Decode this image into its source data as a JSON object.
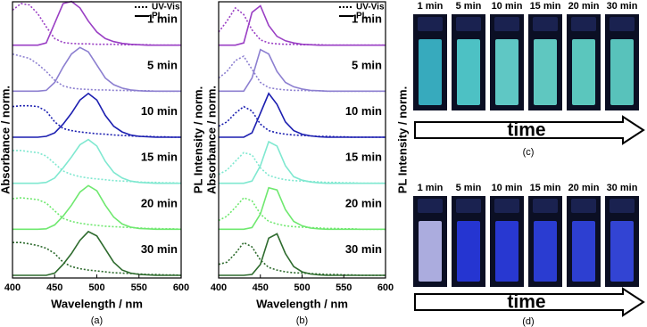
{
  "chart_data": [
    {
      "type": "line",
      "caption": "(a)",
      "xlabel": "Wavelength / nm",
      "ylabel": "Absorbance / norm.",
      "y2label": "PL Intensity / norm.",
      "xlim": [
        400,
        600
      ],
      "xticks": [
        400,
        450,
        500,
        550,
        600
      ],
      "ylim": [
        0,
        1
      ],
      "legend": [
        {
          "name": "UV-Vis",
          "style": "dotted"
        },
        {
          "name": "PL",
          "style": "solid"
        }
      ],
      "x": [
        400,
        410,
        420,
        430,
        440,
        450,
        460,
        470,
        480,
        490,
        500,
        510,
        520,
        530,
        540,
        550,
        560,
        570,
        580,
        590,
        600
      ],
      "samples": [
        {
          "label": "1 min",
          "color": "#9a3fc4",
          "uv": [
            0.8,
            0.95,
            0.92,
            0.72,
            0.42,
            0.15,
            0.06,
            0.04,
            0.03,
            0.03,
            0.02,
            0.02,
            0.02,
            0.01,
            0.01,
            0.01,
            0.01,
            0,
            0,
            0,
            0
          ],
          "pl": [
            0,
            0,
            0,
            0,
            0.05,
            0.5,
            0.95,
            1,
            0.85,
            0.55,
            0.3,
            0.15,
            0.08,
            0.04,
            0.02,
            0.01,
            0,
            0,
            0,
            0,
            0
          ]
        },
        {
          "label": "5 min",
          "color": "#8c7fd0",
          "uv": [
            0.85,
            0.8,
            0.75,
            0.62,
            0.45,
            0.25,
            0.12,
            0.07,
            0.05,
            0.04,
            0.03,
            0.03,
            0.02,
            0.02,
            0.01,
            0.01,
            0.01,
            0,
            0,
            0,
            0
          ],
          "pl": [
            0,
            0,
            0,
            0,
            0.02,
            0.2,
            0.55,
            0.85,
            1,
            0.9,
            0.6,
            0.3,
            0.15,
            0.07,
            0.03,
            0.01,
            0,
            0,
            0,
            0,
            0
          ]
        },
        {
          "label": "10 min",
          "color": "#1c1fb0",
          "uv": [
            0.7,
            0.72,
            0.72,
            0.7,
            0.6,
            0.35,
            0.2,
            0.15,
            0.12,
            0.1,
            0.08,
            0.07,
            0.05,
            0.04,
            0.03,
            0.02,
            0.02,
            0.01,
            0.01,
            0,
            0
          ],
          "pl": [
            0,
            0,
            0,
            0,
            0.02,
            0.1,
            0.3,
            0.55,
            0.85,
            1,
            0.85,
            0.5,
            0.25,
            0.12,
            0.05,
            0.02,
            0.01,
            0,
            0,
            0,
            0
          ]
        },
        {
          "label": "15 min",
          "color": "#7fe8d0",
          "uv": [
            0.75,
            0.75,
            0.72,
            0.7,
            0.62,
            0.45,
            0.28,
            0.2,
            0.15,
            0.12,
            0.1,
            0.08,
            0.06,
            0.05,
            0.04,
            0.03,
            0.02,
            0.02,
            0.01,
            0.01,
            0
          ],
          "pl": [
            0,
            0,
            0,
            0,
            0.02,
            0.12,
            0.35,
            0.6,
            0.88,
            1,
            0.85,
            0.5,
            0.25,
            0.12,
            0.05,
            0.02,
            0.01,
            0,
            0,
            0,
            0
          ]
        },
        {
          "label": "20 min",
          "color": "#6fe86f",
          "uv": [
            0.7,
            0.72,
            0.7,
            0.68,
            0.6,
            0.42,
            0.25,
            0.18,
            0.14,
            0.11,
            0.09,
            0.07,
            0.06,
            0.05,
            0.04,
            0.03,
            0.02,
            0.02,
            0.01,
            0.01,
            0
          ],
          "pl": [
            0,
            0,
            0,
            0,
            0.01,
            0.1,
            0.3,
            0.55,
            0.85,
            1,
            0.88,
            0.55,
            0.28,
            0.12,
            0.05,
            0.02,
            0.01,
            0,
            0,
            0,
            0
          ]
        },
        {
          "label": "30 min",
          "color": "#2e6b2e",
          "uv": [
            0.75,
            0.75,
            0.72,
            0.68,
            0.62,
            0.5,
            0.3,
            0.2,
            0.15,
            0.12,
            0.1,
            0.08,
            0.06,
            0.05,
            0.04,
            0.03,
            0.02,
            0.02,
            0.01,
            0.01,
            0
          ],
          "pl": [
            0,
            0,
            0,
            0,
            0,
            0.05,
            0.25,
            0.5,
            0.8,
            1,
            0.9,
            0.6,
            0.3,
            0.12,
            0.05,
            0.02,
            0.01,
            0,
            0,
            0,
            0
          ]
        }
      ]
    },
    {
      "type": "line",
      "caption": "(b)",
      "xlabel": "Wavelength / nm",
      "ylabel": "Absorbance / norm.",
      "y2label": "PL Intensity / norm.",
      "xlim": [
        400,
        600
      ],
      "xticks": [
        400,
        450,
        500,
        550,
        600
      ],
      "ylim": [
        0,
        1
      ],
      "legend": [
        {
          "name": "UV-Vis",
          "style": "dotted"
        },
        {
          "name": "PL",
          "style": "solid"
        }
      ],
      "x": [
        400,
        410,
        420,
        430,
        440,
        450,
        460,
        470,
        480,
        490,
        500,
        510,
        520,
        530,
        540,
        550,
        560,
        570,
        580,
        590,
        600
      ],
      "samples": [
        {
          "label": "1 min",
          "color": "#9a3fc4",
          "uv": [
            0.3,
            0.55,
            0.85,
            0.7,
            0.35,
            0.12,
            0.05,
            0.03,
            0.02,
            0.02,
            0.01,
            0.01,
            0.01,
            0,
            0,
            0,
            0,
            0,
            0,
            0,
            0
          ],
          "pl": [
            0,
            0,
            0,
            0.05,
            0.75,
            0.9,
            0.45,
            0.2,
            0.1,
            0.05,
            0.02,
            0.01,
            0,
            0,
            0,
            0,
            0,
            0,
            0,
            0,
            0
          ]
        },
        {
          "label": "5 min",
          "color": "#8c7fd0",
          "uv": [
            0.3,
            0.45,
            0.7,
            0.8,
            0.5,
            0.2,
            0.08,
            0.05,
            0.03,
            0.02,
            0.02,
            0.01,
            0.01,
            0,
            0,
            0,
            0,
            0,
            0,
            0,
            0
          ],
          "pl": [
            0,
            0,
            0,
            0,
            0.3,
            0.95,
            0.85,
            0.45,
            0.2,
            0.1,
            0.05,
            0.02,
            0.01,
            0,
            0,
            0,
            0,
            0,
            0,
            0,
            0
          ]
        },
        {
          "label": "10 min",
          "color": "#1c1fb0",
          "uv": [
            0.25,
            0.35,
            0.55,
            0.7,
            0.6,
            0.3,
            0.15,
            0.1,
            0.07,
            0.05,
            0.04,
            0.03,
            0.02,
            0.02,
            0.01,
            0.01,
            0,
            0,
            0,
            0,
            0
          ],
          "pl": [
            0,
            0,
            0,
            0,
            0.1,
            0.55,
            1,
            0.75,
            0.35,
            0.15,
            0.07,
            0.03,
            0.01,
            0,
            0,
            0,
            0,
            0,
            0,
            0,
            0
          ]
        },
        {
          "label": "15 min",
          "color": "#7fe8d0",
          "uv": [
            0.2,
            0.3,
            0.5,
            0.7,
            0.65,
            0.35,
            0.18,
            0.12,
            0.08,
            0.06,
            0.05,
            0.04,
            0.03,
            0.02,
            0.02,
            0.01,
            0.01,
            0,
            0,
            0,
            0
          ],
          "pl": [
            0,
            0,
            0,
            0,
            0.05,
            0.4,
            0.95,
            0.85,
            0.4,
            0.15,
            0.07,
            0.03,
            0.01,
            0,
            0,
            0,
            0,
            0,
            0,
            0,
            0
          ]
        },
        {
          "label": "20 min",
          "color": "#6fe86f",
          "uv": [
            0.2,
            0.3,
            0.5,
            0.72,
            0.65,
            0.35,
            0.18,
            0.12,
            0.08,
            0.06,
            0.05,
            0.04,
            0.03,
            0.02,
            0.02,
            0.01,
            0.01,
            0,
            0,
            0,
            0
          ],
          "pl": [
            0,
            0,
            0,
            0,
            0.04,
            0.35,
            0.95,
            0.9,
            0.45,
            0.18,
            0.08,
            0.03,
            0.01,
            0,
            0,
            0,
            0,
            0,
            0,
            0,
            0
          ]
        },
        {
          "label": "30 min",
          "color": "#2e6b2e",
          "uv": [
            0.25,
            0.3,
            0.5,
            0.75,
            0.65,
            0.35,
            0.18,
            0.12,
            0.08,
            0.06,
            0.05,
            0.04,
            0.03,
            0.02,
            0.02,
            0.01,
            0.01,
            0,
            0,
            0,
            0
          ],
          "pl": [
            0,
            0,
            0,
            0,
            0.02,
            0.25,
            0.85,
            0.95,
            0.5,
            0.2,
            0.08,
            0.03,
            0.01,
            0,
            0,
            0,
            0,
            0,
            0,
            0,
            0
          ]
        }
      ]
    }
  ],
  "photos": [
    {
      "times": [
        "1 min",
        "5 min",
        "10 min",
        "15 min",
        "20 min",
        "30 min"
      ],
      "arrow_label": "time",
      "caption": "(c)"
    },
    {
      "times": [
        "1 min",
        "5 min",
        "10 min",
        "15 min",
        "20 min",
        "30 min"
      ],
      "arrow_label": "time",
      "caption": "(d)"
    }
  ]
}
